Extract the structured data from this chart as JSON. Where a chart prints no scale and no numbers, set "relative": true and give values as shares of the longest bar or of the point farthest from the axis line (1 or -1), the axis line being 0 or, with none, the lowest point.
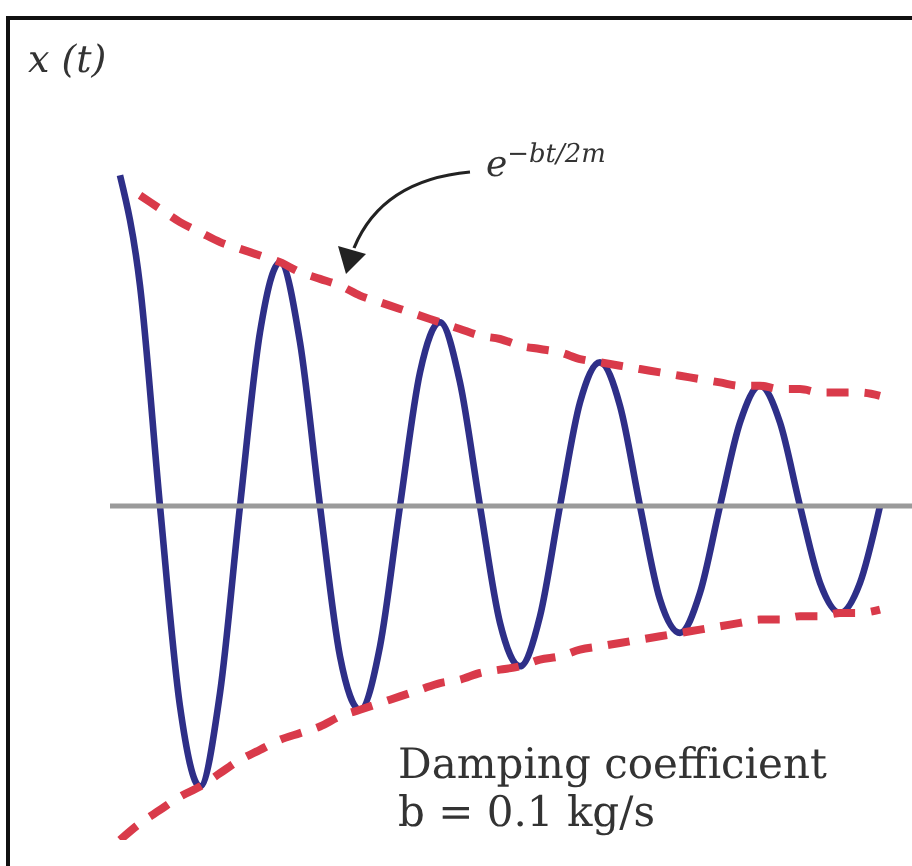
{
  "chart_data": {
    "type": "line",
    "relative": true,
    "ylabel": "x (t)",
    "annotations": [
      "e$^{−bt/2m}$",
      "Damping coefficient",
      "b = 0.1 kg/s"
    ],
    "categories": [
      null,
      null,
      null,
      null,
      null,
      null,
      null,
      null,
      null,
      null,
      null,
      null,
      null,
      null,
      null,
      null,
      null,
      null,
      null,
      null,
      null,
      null,
      null,
      null,
      null,
      null,
      null,
      null,
      null,
      null,
      null,
      null,
      null,
      null,
      null,
      null,
      null,
      null,
      null
    ],
    "series": [
      {
        "color": "#2e2f88",
        "line_style": "solid",
        "values": [
          0.99,
          0.66,
          0,
          -0.6,
          -0.84,
          -0.56,
          0,
          0.52,
          0.73,
          0.49,
          0,
          -0.45,
          -0.61,
          -0.42,
          0,
          0.4,
          0.55,
          0.37,
          0,
          -0.35,
          -0.48,
          -0.33,
          0,
          0.31,
          0.43,
          0.3,
          0,
          -0.28,
          -0.38,
          -0.26,
          0,
          0.25,
          0.36,
          0.25,
          0,
          -0.23,
          -0.32,
          -0.23,
          0
        ]
      },
      {
        "color": "#d93a4a",
        "line_style": "dashed",
        "values": [
          null,
          0.93,
          0.89,
          0.85,
          0.82,
          0.79,
          0.77,
          0.75,
          0.73,
          0.7,
          0.68,
          0.66,
          0.63,
          0.61,
          0.59,
          0.57,
          0.55,
          0.53,
          0.51,
          0.5,
          0.48,
          0.47,
          0.46,
          0.44,
          0.43,
          0.42,
          0.41,
          0.4,
          0.39,
          0.38,
          0.37,
          0.36,
          0.36,
          0.35,
          0.35,
          0.34,
          0.34,
          0.34,
          0.33
        ]
      },
      {
        "color": "#d93a4a",
        "line_style": "dashed",
        "values": [
          -1,
          -0.95,
          -0.91,
          -0.87,
          -0.84,
          -0.8,
          -0.76,
          -0.73,
          -0.7,
          -0.68,
          -0.66,
          -0.63,
          -0.61,
          -0.59,
          -0.57,
          -0.55,
          -0.53,
          -0.52,
          -0.5,
          -0.49,
          -0.48,
          -0.46,
          -0.45,
          -0.43,
          -0.42,
          -0.41,
          -0.4,
          -0.39,
          -0.38,
          -0.37,
          -0.36,
          -0.35,
          -0.34,
          -0.34,
          -0.33,
          -0.33,
          -0.32,
          -0.32,
          -0.31
        ]
      }
    ]
  }
}
